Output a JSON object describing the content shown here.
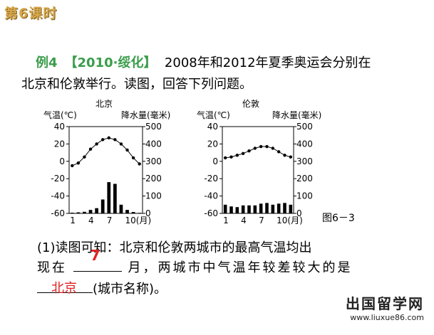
{
  "lesson_label": "第6课时",
  "example_label": "例4",
  "example_source": "【2010·绥化】",
  "question_line1": "2008年和2012年夏季奥运会分别在",
  "question_line2": "北京和伦敦举行。读图，回答下列问题。",
  "figure_label": "图6－3",
  "q1_prefix": "(1)读图可知：北京和伦敦两城市的最高气温均出",
  "q1_line2_start": "现在",
  "q1_line2_end": "月，两城市中气温年较差较大的是",
  "q1_line3_end": "(城市名称)。",
  "answer_month": "7",
  "answer_city": "北京",
  "watermark_cn": "出国留学网",
  "watermark_url": "www.liuxue86.com",
  "chart_data": [
    {
      "type": "bar+line",
      "title": "北京",
      "ylabel_left": "气温(℃)",
      "ylabel_right": "降水量(毫米)",
      "left_ticks": [
        "40",
        "20",
        "0",
        "-20",
        "-40",
        "-60"
      ],
      "right_ticks": [
        "500",
        "400",
        "300",
        "200",
        "100",
        "0"
      ],
      "x_ticks": [
        "1",
        "4",
        "7",
        "10(月)"
      ],
      "months": [
        1,
        2,
        3,
        4,
        5,
        6,
        7,
        8,
        9,
        10,
        11,
        12
      ],
      "temperature": [
        -5,
        -2,
        5,
        14,
        20,
        25,
        27,
        25,
        20,
        13,
        4,
        -3
      ],
      "precipitation": [
        4,
        6,
        9,
        20,
        30,
        80,
        180,
        170,
        50,
        20,
        8,
        3
      ]
    },
    {
      "type": "bar+line",
      "title": "伦敦",
      "ylabel_left": "气温(℃)",
      "ylabel_right": "降水量(毫米)",
      "left_ticks": [
        "40",
        "20",
        "0",
        "-20",
        "-40",
        "-60"
      ],
      "right_ticks": [
        "500",
        "400",
        "300",
        "200",
        "100",
        "0"
      ],
      "x_ticks": [
        "1",
        "4",
        "7",
        "10(月)"
      ],
      "months": [
        1,
        2,
        3,
        4,
        5,
        6,
        7,
        8,
        9,
        10,
        11,
        12
      ],
      "temperature": [
        4,
        5,
        7,
        9,
        12,
        15,
        17,
        17,
        15,
        11,
        7,
        5
      ],
      "precipitation": [
        50,
        40,
        36,
        46,
        46,
        46,
        56,
        60,
        50,
        56,
        60,
        50
      ]
    }
  ]
}
